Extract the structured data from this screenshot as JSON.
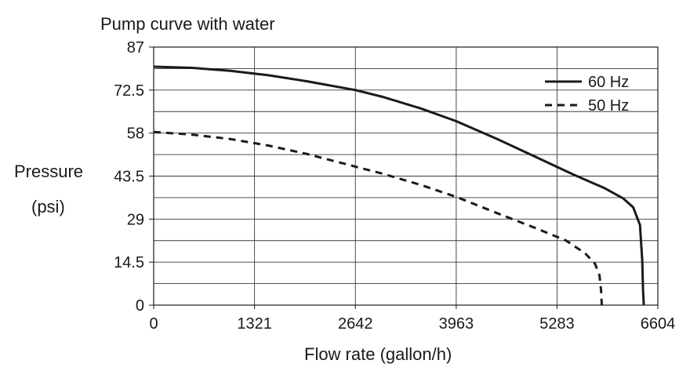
{
  "chart_data": {
    "type": "line",
    "title": "Pump curve with water",
    "xlabel": "Flow rate (gallon/h)",
    "ylabel_line1": "Pressure",
    "ylabel_line2": "(psi)",
    "xlim": [
      0,
      6604
    ],
    "ylim": [
      0,
      87
    ],
    "x_ticks": [
      0,
      1321,
      2642,
      3963,
      5283,
      6604
    ],
    "x_tick_labels": [
      "0",
      "1321",
      "2642",
      "3963",
      "5283",
      "6604"
    ],
    "y_ticks": [
      0,
      14.5,
      29,
      43.5,
      58,
      72.5,
      87
    ],
    "y_tick_labels": [
      "0",
      "14.5",
      "29",
      "43.5",
      "58",
      "72.5",
      "87"
    ],
    "x_gridlines": [
      1321,
      2642,
      3963,
      5283
    ],
    "y_gridlines": [
      7.25,
      14.5,
      21.75,
      29,
      36.25,
      43.5,
      50.75,
      58,
      65.25,
      72.5,
      79.75
    ],
    "grid": true,
    "legend_position": "top-right",
    "series": [
      {
        "name": "60 Hz",
        "style": "solid",
        "color": "#1a1a1a",
        "x": [
          0,
          500,
          1000,
          1500,
          2000,
          2642,
          3000,
          3500,
          3963,
          4500,
          5000,
          5500,
          5900,
          6150,
          6280,
          6370,
          6400,
          6410,
          6420
        ],
        "y": [
          80.4,
          80,
          79,
          77.5,
          75.5,
          72.5,
          70.2,
          66.3,
          62,
          56,
          50,
          44,
          39.5,
          36,
          33,
          27,
          15,
          5,
          0
        ]
      },
      {
        "name": "50 Hz",
        "style": "dashed",
        "color": "#1a1a1a",
        "x": [
          0,
          500,
          1000,
          1500,
          2000,
          2642,
          3000,
          3500,
          3963,
          4500,
          5000,
          5400,
          5650,
          5780,
          5840,
          5860,
          5870
        ],
        "y": [
          58.4,
          57.5,
          56,
          53.8,
          51,
          46.7,
          44.3,
          40.5,
          36.5,
          31,
          26,
          21.8,
          17.5,
          14,
          10,
          5,
          0
        ]
      }
    ]
  }
}
